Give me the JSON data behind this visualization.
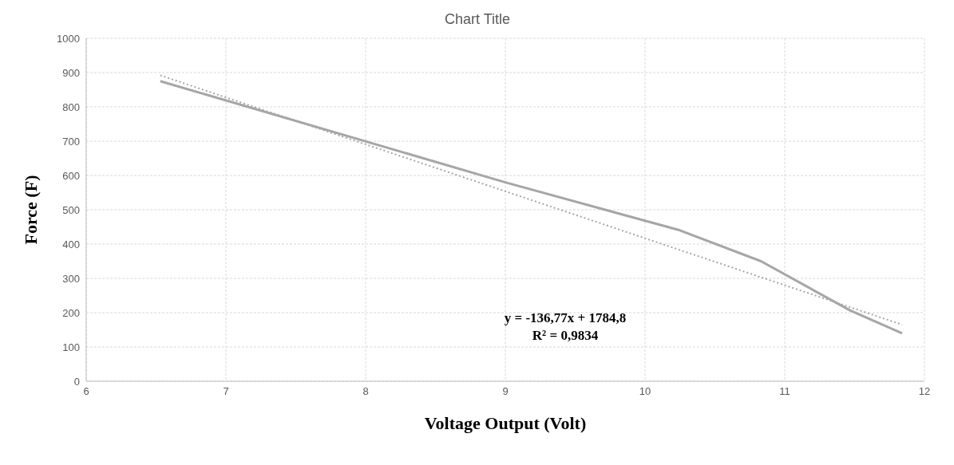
{
  "chart_data": {
    "type": "line",
    "title": "Chart Title",
    "xlabel": "Voltage Output (Volt)",
    "ylabel": "Force (F)",
    "x": [
      6.53,
      9,
      10.25,
      10.83,
      11.47,
      11.84
    ],
    "series": [
      {
        "color": "#a6a6a6",
        "values": [
          875,
          580,
          440,
          350,
          206,
          140
        ],
        "line_style": "solid"
      },
      {
        "type": "line",
        "color": "#a6a6a6",
        "x": [
          6.53,
          11.84
        ],
        "values": [
          892,
          165
        ],
        "line_style": "dotted"
      }
    ],
    "annotations": [
      "y = -136,77x + 1784,8",
      "R² = 0,9834"
    ],
    "xlim": [
      6,
      12
    ],
    "xticks": [
      6,
      7,
      8,
      9,
      10,
      11,
      12
    ],
    "ylim": [
      0,
      1000
    ],
    "yticks": [
      0,
      100,
      200,
      300,
      400,
      500,
      600,
      700,
      800,
      900,
      1000
    ],
    "grid": true,
    "marker": "none"
  }
}
